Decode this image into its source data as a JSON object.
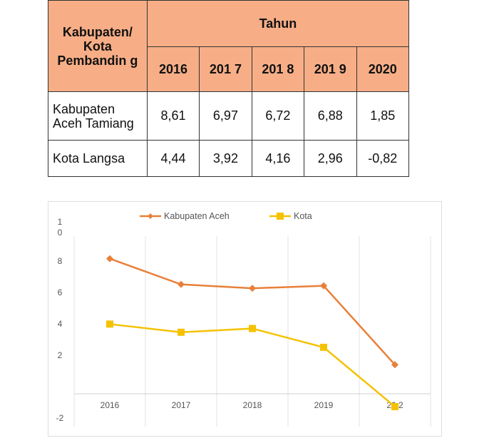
{
  "table": {
    "header_row_label": "Kabupaten/ Kota Pembandin g",
    "group_header": "Tahun",
    "years": [
      "2016",
      "201 7",
      "201 8",
      "201 9",
      "2020"
    ],
    "rows": [
      {
        "name": "Kabupaten Aceh Tamiang",
        "values": [
          "8,61",
          "6,97",
          "6,72",
          "6,88",
          "1,85"
        ]
      },
      {
        "name": "Kota Langsa",
        "values": [
          "4,44",
          "3,92",
          "4,16",
          "2,96",
          "-0,82"
        ]
      }
    ]
  },
  "chart_data": {
    "type": "line",
    "categories": [
      "2016",
      "2017",
      "2018",
      "2019",
      "20 2"
    ],
    "series": [
      {
        "name": "Kabupaten Aceh",
        "values": [
          8.61,
          6.97,
          6.72,
          6.88,
          1.85
        ],
        "color": "#E8803A",
        "marker": "diamond"
      },
      {
        "name": "Kota",
        "values": [
          4.44,
          3.92,
          4.16,
          2.96,
          -0.82
        ],
        "color": "#F5C200",
        "marker": "square"
      }
    ],
    "yticks": [
      "1\n0",
      "8",
      "6",
      "4",
      "2",
      "-2"
    ],
    "ytick_values": [
      10,
      8,
      6,
      4,
      2,
      -2
    ],
    "ylim": [
      -2,
      10
    ],
    "grid": "vertical",
    "legend": "top"
  }
}
